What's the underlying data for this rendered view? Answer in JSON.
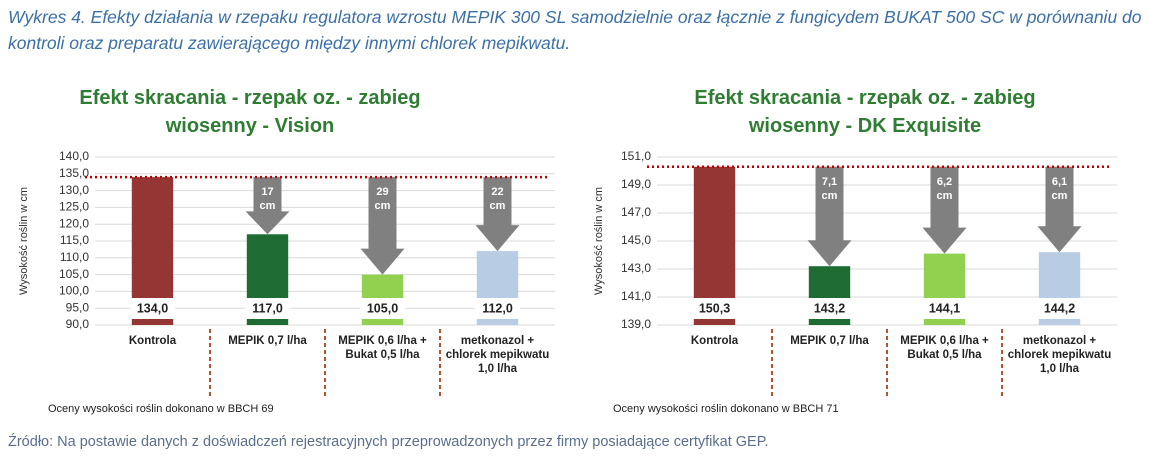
{
  "caption": "Wykres 4. Efekty działania w rzepaku regulatora wzrostu MEPIK 300 SL samodzielnie oraz łącznie z fungicydem BUKAT 500 SC w porównaniu do kontroli oraz preparatu zawierającego między innymi chlorek mepikwatu.",
  "source": "Źródło: Na postawie danych z doświadczeń rejestracyjnych przeprowadzonych przez firmy posiadające certyfikat GEP.",
  "chart_data": [
    {
      "type": "bar",
      "title": "Efekt skracania - rzepak oz. - zabieg wiosenny - Vision",
      "y_label": "Wysokość roślin w cm",
      "categories": [
        "Kontrola",
        "MEPIK 0,7 l/ha",
        "MEPIK 0,6 l/ha + Bukat 0,5 l/ha",
        "metkonazol + chlorek mepikwatu 1,0 l/ha"
      ],
      "values": [
        134.0,
        117.0,
        105.0,
        112.0
      ],
      "value_labels": [
        "134,0",
        "117,0",
        "105,0",
        "112,0"
      ],
      "colors": [
        "#943634",
        "#1e6b34",
        "#92d050",
        "#b8cce4"
      ],
      "reductions": [
        null,
        17,
        29,
        22
      ],
      "reduction_labels": [
        null,
        "17 cm",
        "29 cm",
        "22 cm"
      ],
      "ylim": [
        90,
        140
      ],
      "yticks": [
        {
          "value": 90,
          "label": "90,0"
        },
        {
          "value": 95,
          "label": "95,0"
        },
        {
          "value": 100,
          "label": "100,0"
        },
        {
          "value": 105,
          "label": "105,0"
        },
        {
          "value": 110,
          "label": "110,0"
        },
        {
          "value": 115,
          "label": "115,0"
        },
        {
          "value": 120,
          "label": "120,0"
        },
        {
          "value": 125,
          "label": "125,0"
        },
        {
          "value": 130,
          "label": "130,0"
        },
        {
          "value": 135,
          "label": "135,0"
        },
        {
          "value": 140,
          "label": "140,0"
        }
      ],
      "grid": true,
      "footnote": "Oceny wysokości roślin dokonano w BBCH 69"
    },
    {
      "type": "bar",
      "title": "Efekt skracania - rzepak oz. - zabieg wiosenny - DK Exquisite",
      "y_label": "Wysokość roślin w cm",
      "categories": [
        "Kontrola",
        "MEPIK 0,7 l/ha",
        "MEPIK 0,6 l/ha + Bukat 0,5 l/ha",
        "metkonazol + chlorek mepikwatu 1,0 l/ha"
      ],
      "values": [
        150.3,
        143.2,
        144.1,
        144.2
      ],
      "value_labels": [
        "150,3",
        "143,2",
        "144,1",
        "144,2"
      ],
      "colors": [
        "#943634",
        "#1e6b34",
        "#92d050",
        "#b8cce4"
      ],
      "reductions": [
        null,
        7.1,
        6.2,
        6.1
      ],
      "reduction_labels": [
        null,
        "7,1 cm",
        "6,2 cm",
        "6,1 cm"
      ],
      "ylim": [
        139,
        151
      ],
      "yticks": [
        {
          "value": 139,
          "label": "139,0"
        },
        {
          "value": 141,
          "label": "141,0"
        },
        {
          "value": 143,
          "label": "143,0"
        },
        {
          "value": 145,
          "label": "145,0"
        },
        {
          "value": 147,
          "label": "147,0"
        },
        {
          "value": 149,
          "label": "149,0"
        },
        {
          "value": 151,
          "label": "151,0"
        }
      ],
      "grid": true,
      "footnote": "Oceny wysokości roślin dokonano w BBCH 71"
    }
  ]
}
